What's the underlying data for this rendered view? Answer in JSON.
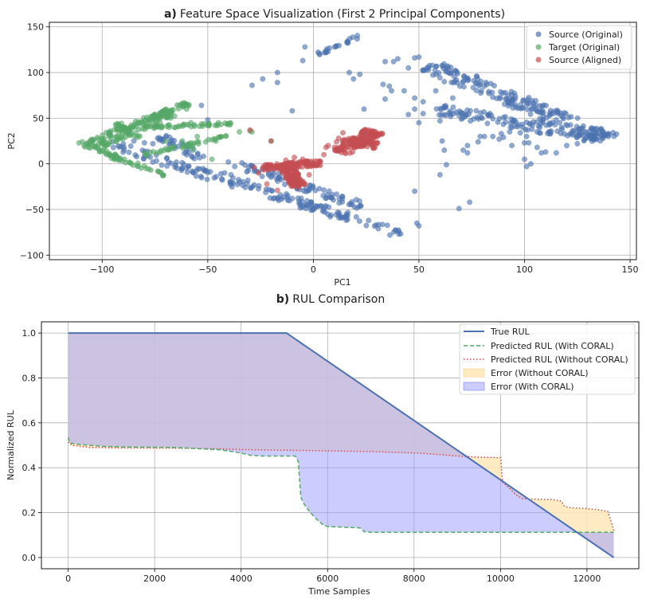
{
  "chart_data": [
    {
      "type": "scatter",
      "panel_letter": "a)",
      "title": "Feature Space Visualization (First 2 Principal Components)",
      "xlabel": "PC1",
      "ylabel": "PC2",
      "xlim": [
        -125,
        153
      ],
      "ylim": [
        -105,
        155
      ],
      "xticks": [
        -100,
        -50,
        0,
        50,
        100,
        150
      ],
      "xtick_labels": [
        "−100",
        "−50",
        "0",
        "50",
        "100",
        "150"
      ],
      "yticks": [
        -100,
        -50,
        0,
        50,
        100,
        150
      ],
      "ytick_labels": [
        "−100",
        "−50",
        "0",
        "50",
        "100",
        "150"
      ],
      "grid": true,
      "legend_position": "top-right",
      "series": [
        {
          "name": "Source (Original)",
          "color": "#4c72b0",
          "structures": [
            {
              "kind": "band",
              "from": [
                -95,
                20
              ],
              "to": [
                42,
                -77
              ],
              "width": 9,
              "count": 170
            },
            {
              "kind": "band",
              "from": [
                -72,
                30
              ],
              "to": [
                -52,
                5
              ],
              "width": 7,
              "count": 35
            },
            {
              "kind": "band",
              "from": [
                -40,
                3
              ],
              "to": [
                25,
                -48
              ],
              "width": 8,
              "count": 80
            },
            {
              "kind": "band",
              "from": [
                55,
                108
              ],
              "to": [
                140,
                27
              ],
              "width": 14,
              "count": 210
            },
            {
              "kind": "band",
              "from": [
                58,
                60
              ],
              "to": [
                140,
                27
              ],
              "width": 12,
              "count": 130
            },
            {
              "kind": "band",
              "from": [
                2,
                120
              ],
              "to": [
                23,
                141
              ],
              "width": 3,
              "count": 22
            }
          ],
          "points": [
            [
              -95,
              24
            ],
            [
              -90,
              22
            ],
            [
              -85,
              25
            ],
            [
              -80,
              23
            ],
            [
              -76,
              22
            ],
            [
              -71,
              27
            ],
            [
              -68,
              29
            ],
            [
              -53,
              64
            ],
            [
              -50,
              48
            ],
            [
              -29,
              86
            ],
            [
              -24,
              93
            ],
            [
              -17,
              100
            ],
            [
              -17,
              89
            ],
            [
              -10,
              58
            ],
            [
              -4,
              128
            ],
            [
              -5,
              113
            ],
            [
              17,
              100
            ],
            [
              19,
              93
            ],
            [
              22,
              98
            ],
            [
              24,
              60
            ],
            [
              34,
              112
            ],
            [
              38,
              112
            ],
            [
              33,
              87
            ],
            [
              37,
              80
            ],
            [
              36,
              85
            ],
            [
              43,
              80
            ],
            [
              34,
              71
            ],
            [
              48,
              72
            ],
            [
              50,
              117
            ],
            [
              48,
              116
            ],
            [
              52,
              68
            ],
            [
              52,
              55
            ],
            [
              48,
              60
            ],
            [
              45,
              54
            ],
            [
              50,
              45
            ],
            [
              48,
              -30
            ],
            [
              49,
              -65
            ],
            [
              50,
              -68
            ],
            [
              60,
              47
            ],
            [
              61,
              25
            ],
            [
              62,
              15
            ],
            [
              60,
              -12
            ],
            [
              63,
              -1
            ],
            [
              69,
              -49
            ],
            [
              71,
              15
            ],
            [
              73,
              20
            ],
            [
              73,
              12
            ],
            [
              74,
              -42
            ],
            [
              78,
              24
            ],
            [
              79,
              30
            ],
            [
              81,
              30
            ],
            [
              88,
              27
            ],
            [
              89,
              33
            ],
            [
              90,
              29
            ],
            [
              94,
              20
            ],
            [
              98,
              34
            ],
            [
              100,
              23
            ],
            [
              101,
              30
            ],
            [
              102,
              23
            ],
            [
              106,
              18
            ],
            [
              108,
              12
            ],
            [
              100,
              5
            ],
            [
              101,
              -3
            ],
            [
              103,
              0
            ],
            [
              110,
              13
            ],
            [
              115,
              12
            ],
            [
              120,
              20
            ],
            [
              125,
              22
            ],
            [
              85,
              30
            ],
            [
              93,
              35
            ],
            [
              70,
              55
            ],
            [
              80,
              50
            ],
            [
              66,
              72
            ],
            [
              58,
              80
            ],
            [
              62,
              90
            ],
            [
              45,
              105
            ],
            [
              40,
              115
            ],
            [
              -46,
              -14
            ],
            [
              -42,
              -10
            ],
            [
              -39,
              -12
            ],
            [
              -35,
              -20
            ],
            [
              -31,
              -18
            ],
            [
              -28,
              -23
            ]
          ]
        },
        {
          "name": "Target (Original)",
          "color": "#55a868",
          "structures": [
            {
              "kind": "band",
              "from": [
                -110,
                20
              ],
              "to": [
                -60,
                66
              ],
              "width": 5,
              "count": 110
            },
            {
              "kind": "band",
              "from": [
                -105,
                16
              ],
              "to": [
                -65,
                56
              ],
              "width": 5,
              "count": 60
            },
            {
              "kind": "band",
              "from": [
                -80,
                40
              ],
              "to": [
                -38,
                44
              ],
              "width": 3,
              "count": 50
            },
            {
              "kind": "band",
              "from": [
                -93,
                44
              ],
              "to": [
                -83,
                28
              ],
              "width": 4,
              "count": 30
            },
            {
              "kind": "band",
              "from": [
                -80,
                10
              ],
              "to": [
                -40,
                30
              ],
              "width": 4,
              "count": 45
            },
            {
              "kind": "band",
              "from": [
                -96,
                8
              ],
              "to": [
                -70,
                -12
              ],
              "width": 4,
              "count": 35
            },
            {
              "kind": "band",
              "from": [
                -110,
                24
              ],
              "to": [
                -92,
                6
              ],
              "width": 4,
              "count": 25
            }
          ],
          "points": [
            [
              -30,
              36
            ],
            [
              -29,
              35
            ],
            [
              -20,
              25
            ],
            [
              -60,
              60
            ],
            [
              -58,
              45
            ],
            [
              -45,
              45
            ],
            [
              -35,
              35
            ],
            [
              -55,
              30
            ],
            [
              -62,
              25
            ],
            [
              -70,
              25
            ],
            [
              -57,
              15
            ],
            [
              -48,
              5
            ]
          ]
        },
        {
          "name": "Source (Aligned)",
          "color": "#c44e52",
          "structures": [
            {
              "kind": "band",
              "from": [
                -24,
                -4
              ],
              "to": [
                4,
                1
              ],
              "width": 6,
              "count": 100
            },
            {
              "kind": "band",
              "from": [
                -14,
                0
              ],
              "to": [
                -7,
                -24
              ],
              "width": 7,
              "count": 120
            },
            {
              "kind": "band",
              "from": [
                13,
                12
              ],
              "to": [
                29,
                36
              ],
              "width": 10,
              "count": 130
            },
            {
              "kind": "band",
              "from": [
                14,
                26
              ],
              "to": [
                30,
                20
              ],
              "width": 7,
              "count": 50
            }
          ],
          "points": [
            [
              -30,
              37
            ],
            [
              -20,
              25
            ],
            [
              5,
              10
            ],
            [
              7,
              20
            ],
            [
              6,
              18
            ],
            [
              10,
              18
            ],
            [
              11,
              24
            ],
            [
              12,
              28
            ],
            [
              14,
              34
            ],
            [
              -5,
              5
            ],
            [
              -3,
              3
            ],
            [
              -13,
              4
            ],
            [
              -28,
              -4
            ],
            [
              -26,
              -10
            ],
            [
              -22,
              -22
            ],
            [
              -17,
              -29
            ],
            [
              -7,
              -26
            ],
            [
              -2,
              -12
            ],
            [
              -9,
              7
            ],
            [
              -20,
              -1
            ]
          ]
        }
      ]
    },
    {
      "type": "line",
      "panel_letter": "b)",
      "title": "RUL Comparison",
      "xlabel": "Time Samples",
      "ylabel": "Normalized RUL",
      "xlim": [
        -620,
        13200
      ],
      "ylim": [
        -0.05,
        1.05
      ],
      "xticks": [
        0,
        2000,
        4000,
        6000,
        8000,
        10000,
        12000
      ],
      "xtick_labels": [
        "0",
        "2000",
        "4000",
        "6000",
        "8000",
        "10000",
        "12000"
      ],
      "yticks": [
        0.0,
        0.2,
        0.4,
        0.6,
        0.8,
        1.0
      ],
      "ytick_labels": [
        "0.0",
        "0.2",
        "0.4",
        "0.6",
        "0.8",
        "1.0"
      ],
      "grid": true,
      "legend_position": "top-right",
      "series": [
        {
          "name": "True RUL",
          "color": "#4c72b0",
          "style": "solid",
          "points": [
            [
              0,
              1.0
            ],
            [
              5050,
              1.0
            ],
            [
              12620,
              0.0
            ]
          ]
        },
        {
          "name": "Predicted RUL (With CORAL)",
          "color": "#55a868",
          "style": "dashed",
          "points": [
            [
              0,
              0.535
            ],
            [
              40,
              0.51
            ],
            [
              300,
              0.503
            ],
            [
              800,
              0.495
            ],
            [
              1500,
              0.492
            ],
            [
              2500,
              0.49
            ],
            [
              3000,
              0.485
            ],
            [
              3500,
              0.48
            ],
            [
              4000,
              0.466
            ],
            [
              4200,
              0.456
            ],
            [
              4500,
              0.452
            ],
            [
              5250,
              0.452
            ],
            [
              5320,
              0.43
            ],
            [
              5350,
              0.35
            ],
            [
              5380,
              0.27
            ],
            [
              5450,
              0.24
            ],
            [
              5600,
              0.2
            ],
            [
              5750,
              0.17
            ],
            [
              5900,
              0.145
            ],
            [
              6000,
              0.138
            ],
            [
              6400,
              0.135
            ],
            [
              6750,
              0.132
            ],
            [
              6850,
              0.115
            ],
            [
              7000,
              0.112
            ],
            [
              8000,
              0.112
            ],
            [
              10000,
              0.112
            ],
            [
              12620,
              0.112
            ]
          ]
        },
        {
          "name": "Predicted RUL (Without CORAL)",
          "color": "#c44e52",
          "style": "dotted",
          "points": [
            [
              0,
              0.515
            ],
            [
              80,
              0.5
            ],
            [
              500,
              0.49
            ],
            [
              1500,
              0.488
            ],
            [
              2500,
              0.487
            ],
            [
              3500,
              0.484
            ],
            [
              4000,
              0.481
            ],
            [
              5000,
              0.478
            ],
            [
              6000,
              0.475
            ],
            [
              7000,
              0.472
            ],
            [
              8000,
              0.466
            ],
            [
              8500,
              0.46
            ],
            [
              9000,
              0.452
            ],
            [
              9500,
              0.447
            ],
            [
              9900,
              0.445
            ],
            [
              10010,
              0.445
            ],
            [
              10020,
              0.4
            ],
            [
              10050,
              0.335
            ],
            [
              10200,
              0.31
            ],
            [
              10350,
              0.28
            ],
            [
              10500,
              0.262
            ],
            [
              10800,
              0.26
            ],
            [
              11200,
              0.258
            ],
            [
              11400,
              0.252
            ],
            [
              11480,
              0.228
            ],
            [
              11600,
              0.222
            ],
            [
              12000,
              0.218
            ],
            [
              12300,
              0.212
            ],
            [
              12480,
              0.205
            ],
            [
              12560,
              0.16
            ],
            [
              12620,
              0.12
            ]
          ]
        },
        {
          "name": "Error (Without CORAL)",
          "color": "#ffe8b8",
          "style": "fill",
          "between": [
            "True RUL",
            "Predicted RUL (Without CORAL)"
          ]
        },
        {
          "name": "Error (With CORAL)",
          "color": "#9a9aff",
          "style": "fill",
          "between": [
            "True RUL",
            "Predicted RUL (With CORAL)"
          ]
        }
      ]
    }
  ]
}
